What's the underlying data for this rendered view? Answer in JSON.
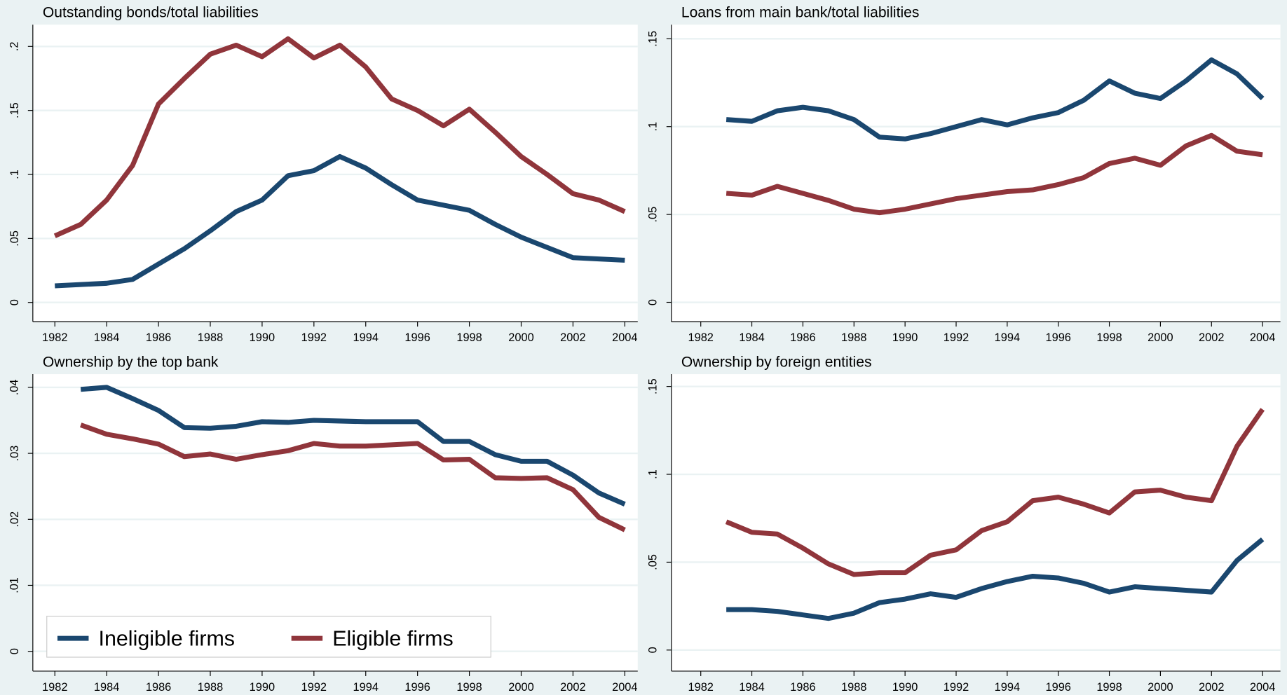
{
  "chart_data": [
    {
      "type": "line",
      "title": "Outstanding bonds/total liabilities",
      "x": [
        1982,
        1983,
        1984,
        1985,
        1986,
        1987,
        1988,
        1989,
        1990,
        1991,
        1992,
        1993,
        1994,
        1995,
        1996,
        1997,
        1998,
        1999,
        2000,
        2001,
        2002,
        2003,
        2004
      ],
      "series": [
        {
          "color": "#1a476f",
          "values": [
            0.013,
            0.014,
            0.015,
            0.018,
            0.03,
            0.042,
            0.056,
            0.071,
            0.08,
            0.099,
            0.103,
            0.114,
            0.105,
            0.092,
            0.08,
            0.076,
            0.072,
            0.061,
            0.051,
            0.043,
            0.035,
            0.034,
            0.033
          ]
        },
        {
          "color": "#90353b",
          "values": [
            0.052,
            0.061,
            0.08,
            0.107,
            0.155,
            0.175,
            0.194,
            0.201,
            0.192,
            0.206,
            0.191,
            0.201,
            0.184,
            0.159,
            0.15,
            0.138,
            0.151,
            0.133,
            0.114,
            0.1,
            0.085,
            0.08,
            0.071
          ]
        }
      ],
      "xlim": [
        1981.15,
        2004.5
      ],
      "ylim": [
        -0.015,
        0.217
      ],
      "xticks": [
        1982,
        1984,
        1986,
        1988,
        1990,
        1992,
        1994,
        1996,
        1998,
        2000,
        2002,
        2004
      ],
      "yticks": [
        0,
        {
          "value": 0.05,
          "label": ".05"
        },
        {
          "value": 0.1,
          "label": ".1"
        },
        {
          "value": 0.15,
          "label": ".15"
        },
        {
          "value": 0.2,
          "label": ".2"
        }
      ],
      "grid": true
    },
    {
      "type": "line",
      "title": "Loans from main bank/total liabilities",
      "x": [
        1983,
        1984,
        1985,
        1986,
        1987,
        1988,
        1989,
        1990,
        1991,
        1992,
        1993,
        1994,
        1995,
        1996,
        1997,
        1998,
        1999,
        2000,
        2001,
        2002,
        2003,
        2004
      ],
      "series": [
        {
          "color": "#1a476f",
          "values": [
            0.104,
            0.103,
            0.109,
            0.111,
            0.109,
            0.104,
            0.094,
            0.093,
            0.096,
            0.1,
            0.104,
            0.101,
            0.105,
            0.108,
            0.115,
            0.126,
            0.119,
            0.116,
            0.126,
            0.138,
            0.13,
            0.116
          ]
        },
        {
          "color": "#90353b",
          "values": [
            0.062,
            0.061,
            0.066,
            0.062,
            0.058,
            0.053,
            0.051,
            0.053,
            0.056,
            0.059,
            0.061,
            0.063,
            0.064,
            0.067,
            0.071,
            0.079,
            0.082,
            0.078,
            0.089,
            0.095,
            0.086,
            0.084
          ]
        }
      ],
      "xlim": [
        1980.85,
        2004.7
      ],
      "ylim": [
        -0.011,
        0.158
      ],
      "xticks": [
        1982,
        1984,
        1986,
        1988,
        1990,
        1992,
        1994,
        1996,
        1998,
        2000,
        2002,
        2004
      ],
      "yticks": [
        0,
        {
          "value": 0.05,
          "label": ".05"
        },
        {
          "value": 0.1,
          "label": ".1"
        },
        {
          "value": 0.15,
          "label": ".15"
        }
      ],
      "grid": true
    },
    {
      "type": "line",
      "title": "Ownership by the top bank",
      "x": [
        1983,
        1984,
        1985,
        1986,
        1987,
        1988,
        1989,
        1990,
        1991,
        1992,
        1993,
        1994,
        1995,
        1996,
        1997,
        1998,
        1999,
        2000,
        2001,
        2002,
        2003,
        2004
      ],
      "series": [
        {
          "name": "Ineligible firms",
          "color": "#1a476f",
          "values": [
            0.0397,
            0.04,
            0.0383,
            0.0365,
            0.0339,
            0.0338,
            0.0341,
            0.0348,
            0.0347,
            0.035,
            0.0349,
            0.0348,
            0.0348,
            0.0348,
            0.0318,
            0.0318,
            0.0298,
            0.0288,
            0.0288,
            0.0267,
            0.024,
            0.0223
          ]
        },
        {
          "name": "Eligible firms",
          "color": "#90353b",
          "values": [
            0.0343,
            0.0329,
            0.0322,
            0.0314,
            0.0295,
            0.0299,
            0.0291,
            0.0298,
            0.0304,
            0.0315,
            0.0311,
            0.0311,
            0.0313,
            0.0315,
            0.029,
            0.0291,
            0.0263,
            0.0262,
            0.0263,
            0.0245,
            0.0203,
            0.0184
          ]
        }
      ],
      "xlim": [
        1981.15,
        2004.5
      ],
      "ylim": [
        -0.003,
        0.042
      ],
      "xticks": [
        1982,
        1984,
        1986,
        1988,
        1990,
        1992,
        1994,
        1996,
        1998,
        2000,
        2002,
        2004
      ],
      "yticks": [
        0,
        {
          "value": 0.01,
          "label": ".01"
        },
        {
          "value": 0.02,
          "label": ".02"
        },
        {
          "value": 0.03,
          "label": ".03"
        },
        {
          "value": 0.04,
          "label": ".04"
        }
      ],
      "grid": true,
      "legend": "bottom-left"
    },
    {
      "type": "line",
      "title": "Ownership by foreign entities",
      "x": [
        1983,
        1984,
        1985,
        1986,
        1987,
        1988,
        1989,
        1990,
        1991,
        1992,
        1993,
        1994,
        1995,
        1996,
        1997,
        1998,
        1999,
        2000,
        2001,
        2002,
        2003,
        2004
      ],
      "series": [
        {
          "color": "#1a476f",
          "values": [
            0.023,
            0.023,
            0.022,
            0.02,
            0.018,
            0.021,
            0.027,
            0.029,
            0.032,
            0.03,
            0.035,
            0.039,
            0.042,
            0.041,
            0.038,
            0.033,
            0.036,
            0.035,
            0.034,
            0.033,
            0.051,
            0.063
          ]
        },
        {
          "color": "#90353b",
          "values": [
            0.073,
            0.067,
            0.066,
            0.058,
            0.049,
            0.043,
            0.044,
            0.044,
            0.054,
            0.057,
            0.068,
            0.073,
            0.085,
            0.087,
            0.083,
            0.078,
            0.09,
            0.091,
            0.087,
            0.085,
            0.116,
            0.137
          ]
        }
      ],
      "xlim": [
        1980.85,
        2004.7
      ],
      "ylim": [
        -0.012,
        0.157
      ],
      "xticks": [
        1982,
        1984,
        1986,
        1988,
        1990,
        1992,
        1994,
        1996,
        1998,
        2000,
        2002,
        2004
      ],
      "yticks": [
        0,
        {
          "value": 0.05,
          "label": ".05"
        },
        {
          "value": 0.1,
          "label": ".1"
        },
        {
          "value": 0.15,
          "label": ".15"
        }
      ],
      "grid": true
    }
  ]
}
